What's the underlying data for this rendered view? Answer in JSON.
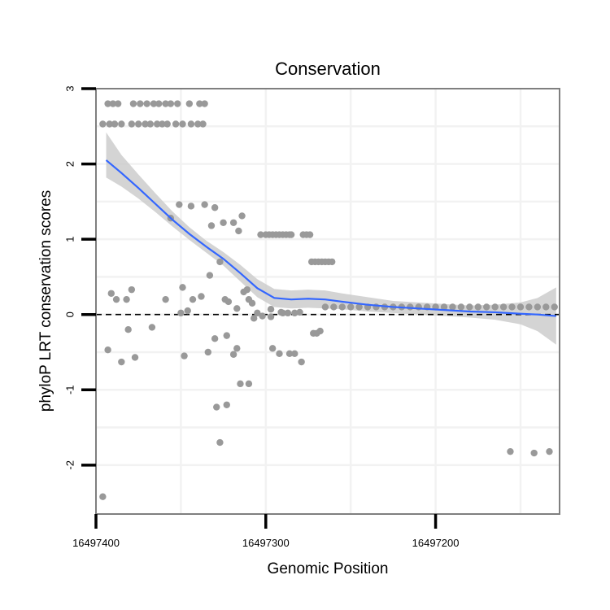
{
  "chart_data": {
    "type": "scatter",
    "title": "Conservation",
    "xlabel": "Genomic Position",
    "ylabel": "phyloP LRT conservation scores",
    "x_reversed": true,
    "xlim": [
      16497400,
      16497127
    ],
    "ylim": [
      -2.65,
      3
    ],
    "x_ticks": [
      16497400,
      16497300,
      16497200
    ],
    "x_tick_labels": [
      "16497400",
      "16497300",
      "16497200"
    ],
    "y_ticks": [
      -2,
      -1,
      0,
      1,
      2,
      3
    ],
    "y_tick_labels": [
      "-2",
      "-1",
      "0",
      "1",
      "2",
      "3"
    ],
    "reference_line": {
      "y": 0,
      "style": "dashed"
    },
    "colors": {
      "points": "#999999",
      "smooth_line": "#3366FF",
      "ribbon": "#CCCCCC",
      "grid": "#F2F2F2",
      "frame": "#7F7F7F"
    },
    "series": [
      {
        "name": "phyloP scores",
        "points": [
          [
            16497396,
            2.53
          ],
          [
            16497392,
            2.53
          ],
          [
            16497389,
            2.53
          ],
          [
            16497385,
            2.53
          ],
          [
            16497379,
            2.53
          ],
          [
            16497375,
            2.53
          ],
          [
            16497371,
            2.53
          ],
          [
            16497368,
            2.53
          ],
          [
            16497364,
            2.53
          ],
          [
            16497361,
            2.53
          ],
          [
            16497358,
            2.53
          ],
          [
            16497353,
            2.53
          ],
          [
            16497349,
            2.53
          ],
          [
            16497344,
            2.53
          ],
          [
            16497340,
            2.53
          ],
          [
            16497337,
            2.53
          ],
          [
            16497393,
            2.8
          ],
          [
            16497390,
            2.8
          ],
          [
            16497387,
            2.8
          ],
          [
            16497378,
            2.8
          ],
          [
            16497374,
            2.8
          ],
          [
            16497370,
            2.8
          ],
          [
            16497366,
            2.8
          ],
          [
            16497363,
            2.8
          ],
          [
            16497359,
            2.8
          ],
          [
            16497356,
            2.8
          ],
          [
            16497352,
            2.8
          ],
          [
            16497345,
            2.8
          ],
          [
            16497339,
            2.8
          ],
          [
            16497336,
            2.8
          ],
          [
            16497356,
            1.28
          ],
          [
            16497351,
            1.46
          ],
          [
            16497344,
            1.44
          ],
          [
            16497336,
            1.46
          ],
          [
            16497332,
            1.18
          ],
          [
            16497330,
            1.42
          ],
          [
            16497325,
            1.22
          ],
          [
            16497319,
            1.22
          ],
          [
            16497316,
            1.11
          ],
          [
            16497314,
            1.31
          ],
          [
            16497303,
            1.06
          ],
          [
            16497300,
            1.06
          ],
          [
            16497298,
            1.06
          ],
          [
            16497296,
            1.06
          ],
          [
            16497294,
            1.06
          ],
          [
            16497292,
            1.06
          ],
          [
            16497290,
            1.06
          ],
          [
            16497288,
            1.06
          ],
          [
            16497286,
            1.06
          ],
          [
            16497285,
            1.06
          ],
          [
            16497278,
            1.06
          ],
          [
            16497276,
            1.06
          ],
          [
            16497274,
            1.06
          ],
          [
            16497273,
            0.7
          ],
          [
            16497271,
            0.7
          ],
          [
            16497269,
            0.7
          ],
          [
            16497267,
            0.7
          ],
          [
            16497265,
            0.7
          ],
          [
            16497263,
            0.7
          ],
          [
            16497261,
            0.7
          ],
          [
            16497327,
            0.7
          ],
          [
            16497333,
            0.52
          ],
          [
            16497313,
            0.3
          ],
          [
            16497311,
            0.33
          ],
          [
            16497310,
            0.2
          ],
          [
            16497324,
            0.2
          ],
          [
            16497322,
            0.17
          ],
          [
            16497308,
            0.15
          ],
          [
            16497391,
            0.28
          ],
          [
            16497388,
            0.2
          ],
          [
            16497382,
            0.2
          ],
          [
            16497379,
            0.33
          ],
          [
            16497359,
            0.2
          ],
          [
            16497349,
            0.36
          ],
          [
            16497343,
            0.2
          ],
          [
            16497338,
            0.24
          ],
          [
            16497350,
            0.02
          ],
          [
            16497346,
            0.05
          ],
          [
            16497317,
            0.08
          ],
          [
            16497305,
            0.02
          ],
          [
            16497302,
            -0.02
          ],
          [
            16497297,
            0.07
          ],
          [
            16497291,
            0.03
          ],
          [
            16497287,
            0.02
          ],
          [
            16497283,
            0.02
          ],
          [
            16497280,
            0.03
          ],
          [
            16497393,
            -0.47
          ],
          [
            16497385,
            -0.63
          ],
          [
            16497381,
            -0.2
          ],
          [
            16497377,
            -0.57
          ],
          [
            16497367,
            -0.17
          ],
          [
            16497348,
            -0.55
          ],
          [
            16497334,
            -0.5
          ],
          [
            16497330,
            -0.32
          ],
          [
            16497323,
            -0.28
          ],
          [
            16497319,
            -0.53
          ],
          [
            16497317,
            -0.45
          ],
          [
            16497307,
            -0.05
          ],
          [
            16497296,
            -0.45
          ],
          [
            16497292,
            -0.52
          ],
          [
            16497286,
            -0.52
          ],
          [
            16497283,
            -0.52
          ],
          [
            16497279,
            -0.63
          ],
          [
            16497272,
            -0.25
          ],
          [
            16497270,
            -0.25
          ],
          [
            16497268,
            -0.22
          ],
          [
            16497290,
            0.02
          ],
          [
            16497297,
            -0.03
          ],
          [
            16497315,
            -0.92
          ],
          [
            16497310,
            -0.92
          ],
          [
            16497329,
            -1.23
          ],
          [
            16497323,
            -1.2
          ],
          [
            16497327,
            -1.7
          ],
          [
            16497396,
            -2.42
          ],
          [
            16497156,
            -1.82
          ],
          [
            16497133,
            -1.82
          ],
          [
            16497142,
            -1.84
          ],
          [
            16497265,
            0.1
          ],
          [
            16497260,
            0.1
          ],
          [
            16497255,
            0.1
          ],
          [
            16497250,
            0.1
          ],
          [
            16497245,
            0.1
          ],
          [
            16497240,
            0.1
          ],
          [
            16497235,
            0.1
          ],
          [
            16497230,
            0.1
          ],
          [
            16497225,
            0.1
          ],
          [
            16497220,
            0.1
          ],
          [
            16497215,
            0.1
          ],
          [
            16497210,
            0.1
          ],
          [
            16497205,
            0.1
          ],
          [
            16497200,
            0.1
          ],
          [
            16497195,
            0.1
          ],
          [
            16497190,
            0.1
          ],
          [
            16497185,
            0.1
          ],
          [
            16497180,
            0.1
          ],
          [
            16497175,
            0.1
          ],
          [
            16497170,
            0.1
          ],
          [
            16497165,
            0.1
          ],
          [
            16497160,
            0.1
          ],
          [
            16497155,
            0.1
          ],
          [
            16497150,
            0.1
          ],
          [
            16497145,
            0.1
          ],
          [
            16497140,
            0.1
          ],
          [
            16497135,
            0.1
          ],
          [
            16497130,
            0.1
          ]
        ]
      }
    ],
    "smooth": {
      "name": "loess fit",
      "points": [
        [
          16497394,
          2.05
        ],
        [
          16497385,
          1.88
        ],
        [
          16497375,
          1.68
        ],
        [
          16497365,
          1.47
        ],
        [
          16497355,
          1.26
        ],
        [
          16497345,
          1.07
        ],
        [
          16497335,
          0.9
        ],
        [
          16497325,
          0.74
        ],
        [
          16497315,
          0.55
        ],
        [
          16497305,
          0.35
        ],
        [
          16497295,
          0.22
        ],
        [
          16497285,
          0.2
        ],
        [
          16497275,
          0.21
        ],
        [
          16497265,
          0.2
        ],
        [
          16497255,
          0.17
        ],
        [
          16497240,
          0.13
        ],
        [
          16497225,
          0.1
        ],
        [
          16497210,
          0.08
        ],
        [
          16497195,
          0.06
        ],
        [
          16497180,
          0.04
        ],
        [
          16497165,
          0.03
        ],
        [
          16497150,
          0.01
        ],
        [
          16497140,
          0.0
        ],
        [
          16497129,
          -0.02
        ]
      ],
      "lower": [
        1.82,
        1.7,
        1.54,
        1.36,
        1.17,
        0.99,
        0.82,
        0.65,
        0.44,
        0.23,
        0.1,
        0.08,
        0.09,
        0.08,
        0.07,
        0.04,
        0.02,
        0.0,
        -0.02,
        -0.04,
        -0.07,
        -0.13,
        -0.22,
        -0.4
      ],
      "upper": [
        2.42,
        2.12,
        1.86,
        1.61,
        1.37,
        1.16,
        0.98,
        0.83,
        0.66,
        0.47,
        0.34,
        0.32,
        0.33,
        0.32,
        0.28,
        0.23,
        0.18,
        0.16,
        0.14,
        0.12,
        0.13,
        0.16,
        0.22,
        0.36
      ]
    }
  }
}
